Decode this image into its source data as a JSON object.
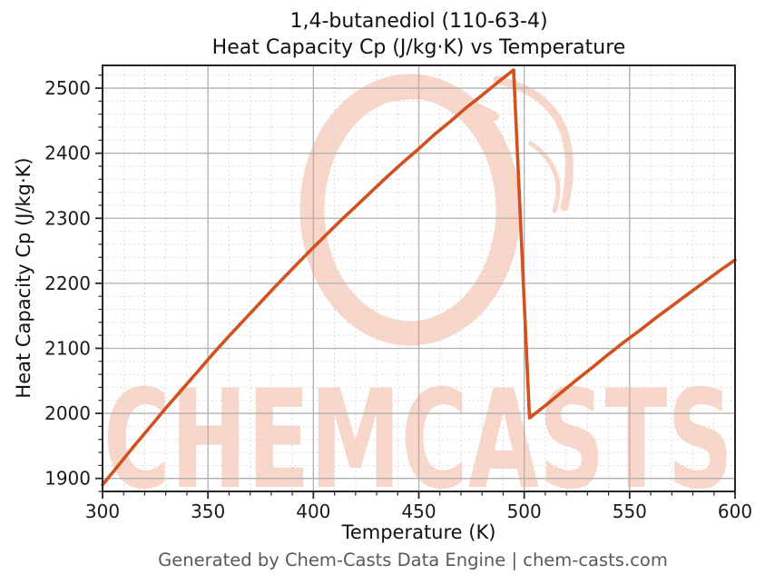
{
  "page": {
    "background": "#ffffff"
  },
  "footer": {
    "text": "Generated by Chem-Casts Data Engine | chem-casts.com",
    "color": "#595959"
  },
  "watermark": {
    "text": "CHEMCASTS",
    "color": "#f8d6c9"
  },
  "chart_data": {
    "type": "line",
    "title": "1,4-butanediol (110-63-4)",
    "subtitle": "Heat Capacity Cp (J/kg·K) vs Temperature",
    "xlabel": "Temperature (K)",
    "ylabel": "Heat Capacity Cp (J/kg·K)",
    "xlim": [
      300,
      600
    ],
    "ylim": [
      1880,
      2535
    ],
    "x_ticks": [
      300,
      350,
      400,
      450,
      500,
      550,
      600
    ],
    "y_ticks": [
      1900,
      2000,
      2100,
      2200,
      2300,
      2400,
      2500
    ],
    "x_minor_step": 10,
    "y_minor_step": 20,
    "grid": true,
    "legend": "none",
    "style": {
      "line_color": "#d1511f",
      "line_width": 3.6,
      "major_grid_color": "#b0b0b0",
      "minor_grid_color": "#d8d8d8",
      "spine_color": "#262626",
      "tick_label_color": "#1a1a1a"
    },
    "series": [
      {
        "name": "Heat Capacity Cp (J/kg·K)",
        "points": [
          [
            300,
            1890
          ],
          [
            307.5,
            1920
          ],
          [
            315,
            1950
          ],
          [
            322.5,
            1979
          ],
          [
            330,
            2008
          ],
          [
            337.5,
            2036
          ],
          [
            345,
            2064
          ],
          [
            352.5,
            2092
          ],
          [
            360,
            2119
          ],
          [
            367.5,
            2145
          ],
          [
            375,
            2171
          ],
          [
            382.5,
            2197
          ],
          [
            390,
            2222
          ],
          [
            397.5,
            2247
          ],
          [
            405,
            2271
          ],
          [
            412.5,
            2295
          ],
          [
            420,
            2318
          ],
          [
            427.5,
            2341
          ],
          [
            435,
            2364
          ],
          [
            442.5,
            2386
          ],
          [
            450,
            2407
          ],
          [
            457.5,
            2429
          ],
          [
            465,
            2449
          ],
          [
            472.5,
            2470
          ],
          [
            480,
            2489
          ],
          [
            487.5,
            2509
          ],
          [
            495,
            2528
          ],
          [
            502.5,
            1993
          ],
          [
            510,
            2012
          ],
          [
            517.5,
            2032
          ],
          [
            525,
            2052
          ],
          [
            532.5,
            2071
          ],
          [
            540,
            2091
          ],
          [
            547.5,
            2110
          ],
          [
            555,
            2128
          ],
          [
            562.5,
            2147
          ],
          [
            570,
            2165
          ],
          [
            577.5,
            2183
          ],
          [
            585,
            2201
          ],
          [
            592.5,
            2219
          ],
          [
            600,
            2236
          ]
        ]
      }
    ]
  }
}
